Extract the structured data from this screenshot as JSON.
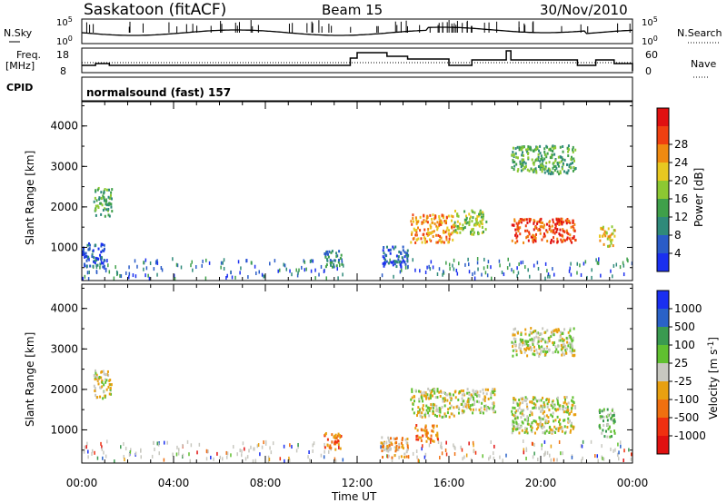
{
  "header": {
    "station": "Saskatoon (fitACF)",
    "beam": "Beam 15",
    "date": "30/Nov/2010"
  },
  "left_labels": {
    "nsky": "N.Sky",
    "freq_line1": "Freq.",
    "freq_line2": "[MHz]",
    "cpid": "CPID"
  },
  "right_labels": {
    "nsearch": "N.Search",
    "nave": "Nave"
  },
  "noise_axis": {
    "top_base": "10",
    "top_exp": "5",
    "bottom_base": "10",
    "bottom_exp": "0"
  },
  "freq_axis": {
    "ticks": [
      "18",
      "8"
    ],
    "right_ticks": [
      "60",
      "0"
    ]
  },
  "cpid_text": "normalsound (fast) 157",
  "x_axis": {
    "label": "Time UT",
    "ticks": [
      "00:00",
      "04:00",
      "08:00",
      "12:00",
      "16:00",
      "20:00",
      "00:00"
    ]
  },
  "colors": {
    "power": [
      "#1a2ff0",
      "#2a5cc8",
      "#2f8a7a",
      "#3fa04a",
      "#8cc832",
      "#e8c820",
      "#f08a10",
      "#f04010",
      "#e01010"
    ],
    "velocity": [
      "#1a2ff0",
      "#2a62c8",
      "#3a9a50",
      "#60c030",
      "#c8c8c0",
      "#e8a010",
      "#f07010",
      "#f03010",
      "#e01010"
    ]
  },
  "chart_data": [
    {
      "type": "heatmap",
      "name": "power",
      "ylabel": "Slant Range [km]",
      "xlabel": "",
      "ylim": [
        180,
        4600
      ],
      "yticks": [
        "1000",
        "2000",
        "3000",
        "4000"
      ],
      "colorbar_label": "Power [dB]",
      "colorbar_ticks": [
        "4",
        "8",
        "12",
        "16",
        "20",
        "24",
        "28"
      ],
      "blobs": [
        {
          "t0": 0.5,
          "t1": 1.3,
          "r0": 1750,
          "r1": 2450,
          "level": 3
        },
        {
          "t0": 0.0,
          "t1": 1.0,
          "r0": 500,
          "r1": 1100,
          "level": 1
        },
        {
          "t0": 10.5,
          "t1": 11.3,
          "r0": 500,
          "r1": 900,
          "level": 2
        },
        {
          "t0": 14.3,
          "t1": 16.2,
          "r0": 1100,
          "r1": 1800,
          "level": 6
        },
        {
          "t0": 16.2,
          "t1": 17.6,
          "r0": 1300,
          "r1": 1900,
          "level": 4
        },
        {
          "t0": 18.7,
          "t1": 21.5,
          "r0": 1100,
          "r1": 1700,
          "level": 7
        },
        {
          "t0": 18.7,
          "t1": 21.5,
          "r0": 2800,
          "r1": 3500,
          "level": 3
        },
        {
          "t0": 13.0,
          "t1": 14.2,
          "r0": 500,
          "r1": 1000,
          "level": 1
        },
        {
          "t0": 22.5,
          "t1": 23.2,
          "r0": 1000,
          "r1": 1500,
          "level": 5
        }
      ]
    },
    {
      "type": "heatmap",
      "name": "velocity",
      "ylabel": "Slant Range [km]",
      "xlabel": "Time UT",
      "ylim": [
        180,
        4600
      ],
      "yticks": [
        "1000",
        "2000",
        "3000",
        "4000"
      ],
      "colorbar_label": "Velocity [m s-1]",
      "colorbar_ticks": [
        "1000",
        "500",
        "100",
        "25",
        "-25",
        "-100",
        "-500",
        "-1000"
      ],
      "blobs": [
        {
          "t0": 0.5,
          "t1": 1.3,
          "r0": 1750,
          "r1": 2450,
          "level": 4
        },
        {
          "t0": 10.5,
          "t1": 11.3,
          "r0": 500,
          "r1": 900,
          "level": 6
        },
        {
          "t0": 13.0,
          "t1": 14.2,
          "r0": 300,
          "r1": 800,
          "level": 5
        },
        {
          "t0": 14.3,
          "t1": 16.2,
          "r0": 1300,
          "r1": 2000,
          "level": 4
        },
        {
          "t0": 14.5,
          "t1": 15.5,
          "r0": 700,
          "r1": 1100,
          "level": 6
        },
        {
          "t0": 16.2,
          "t1": 18.0,
          "r0": 1400,
          "r1": 2000,
          "level": 4
        },
        {
          "t0": 18.7,
          "t1": 21.5,
          "r0": 900,
          "r1": 1800,
          "level": 4
        },
        {
          "t0": 18.7,
          "t1": 21.5,
          "r0": 2800,
          "r1": 3500,
          "level": 4
        },
        {
          "t0": 22.5,
          "t1": 23.2,
          "r0": 800,
          "r1": 1500,
          "level": 3
        }
      ]
    }
  ]
}
